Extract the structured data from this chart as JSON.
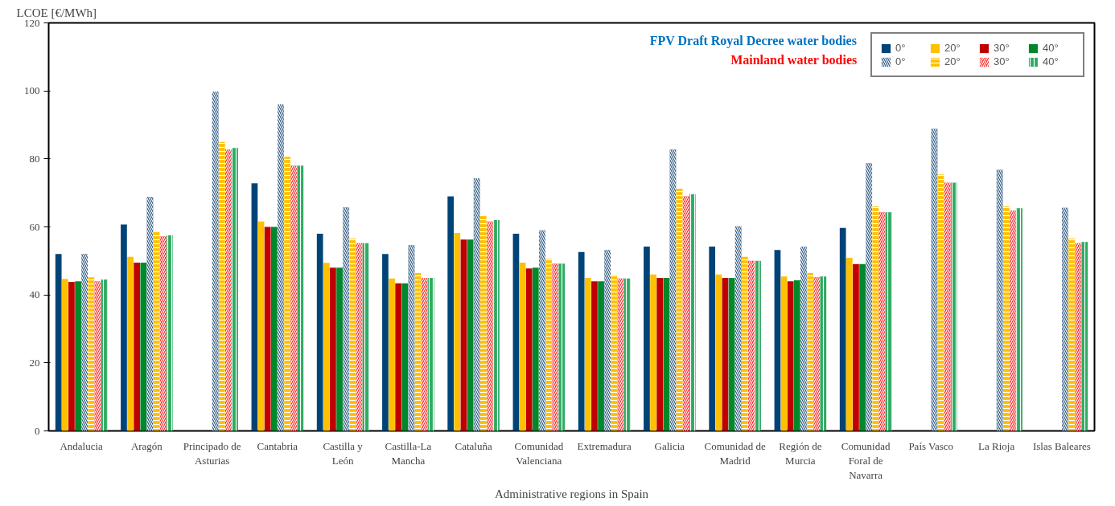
{
  "chart_data": {
    "type": "bar",
    "ylabel": "LCOE [€/MWh]",
    "xlabel": "Administrative regions in Spain",
    "categories": [
      "Andalucia",
      "Aragón",
      "Principado de Asturias",
      "Cantabria",
      "Castilla y León",
      "Castilla-La Mancha",
      "Cataluña",
      "Comunidad Valenciana",
      "Extremadura",
      "Galicia",
      "Comunidad de Madrid",
      "Región de Murcia",
      "Comunidad Foral de Navarra",
      "País Vasco",
      "La Rioja",
      "Islas Baleares"
    ],
    "series": [
      {
        "name": "0°",
        "color": "#004477",
        "values": [
          52,
          60.7,
          null,
          72.8,
          58,
          52,
          69,
          58,
          52.6,
          54.2,
          54.2,
          53.2,
          59.7,
          null,
          null,
          null
        ]
      },
      {
        "name": "20°",
        "color": "#ffc000",
        "values": [
          44.7,
          51.2,
          null,
          61.6,
          49.4,
          44.8,
          58.2,
          49.5,
          45,
          46,
          46,
          45.4,
          50.9,
          null,
          null,
          null
        ]
      },
      {
        "name": "30°",
        "color": "#c00000",
        "values": [
          43.8,
          49.5,
          null,
          60,
          48,
          43.4,
          56.3,
          47.8,
          44,
          45,
          45,
          44,
          49.1,
          null,
          null,
          null
        ]
      },
      {
        "name": "40°",
        "color": "#00882b",
        "values": [
          44,
          49.5,
          null,
          60,
          48,
          43.4,
          56.3,
          48,
          44,
          45,
          45,
          44.3,
          49.1,
          null,
          null,
          null
        ]
      },
      {
        "name": "0°",
        "color": "#1f4e79",
        "values": [
          52,
          68.8,
          99.8,
          96,
          65.7,
          54.6,
          74.3,
          59,
          53.2,
          82.8,
          60.2,
          54.2,
          78.7,
          88.8,
          76.8,
          65.6
        ]
      },
      {
        "name": "20°",
        "color": "#ffc000",
        "values": [
          45.2,
          58.5,
          85,
          80.6,
          56.6,
          46.4,
          63.2,
          50.6,
          45.8,
          71.2,
          51.2,
          46.4,
          66,
          75.4,
          66,
          56.6
        ]
      },
      {
        "name": "30°",
        "color": "#ff2020",
        "values": [
          44,
          57.2,
          82.8,
          78,
          55.2,
          45,
          61.6,
          49.2,
          44.8,
          69,
          50,
          45.2,
          64.3,
          73,
          64.8,
          55.2
        ]
      },
      {
        "name": "40°",
        "color": "#2eaa60",
        "values": [
          44.5,
          57.5,
          83.2,
          78,
          55.2,
          45,
          62,
          49.2,
          44.8,
          69.6,
          50,
          45.4,
          64.3,
          73,
          65.5,
          55.6
        ]
      }
    ],
    "ylim": [
      0,
      120
    ],
    "yticks": [
      0,
      20,
      40,
      60,
      80,
      100,
      120
    ],
    "grid": false,
    "legend": "top right",
    "annotations": [
      "FPV Draft Royal Decree water bodies",
      "Mainland water bodies"
    ]
  }
}
